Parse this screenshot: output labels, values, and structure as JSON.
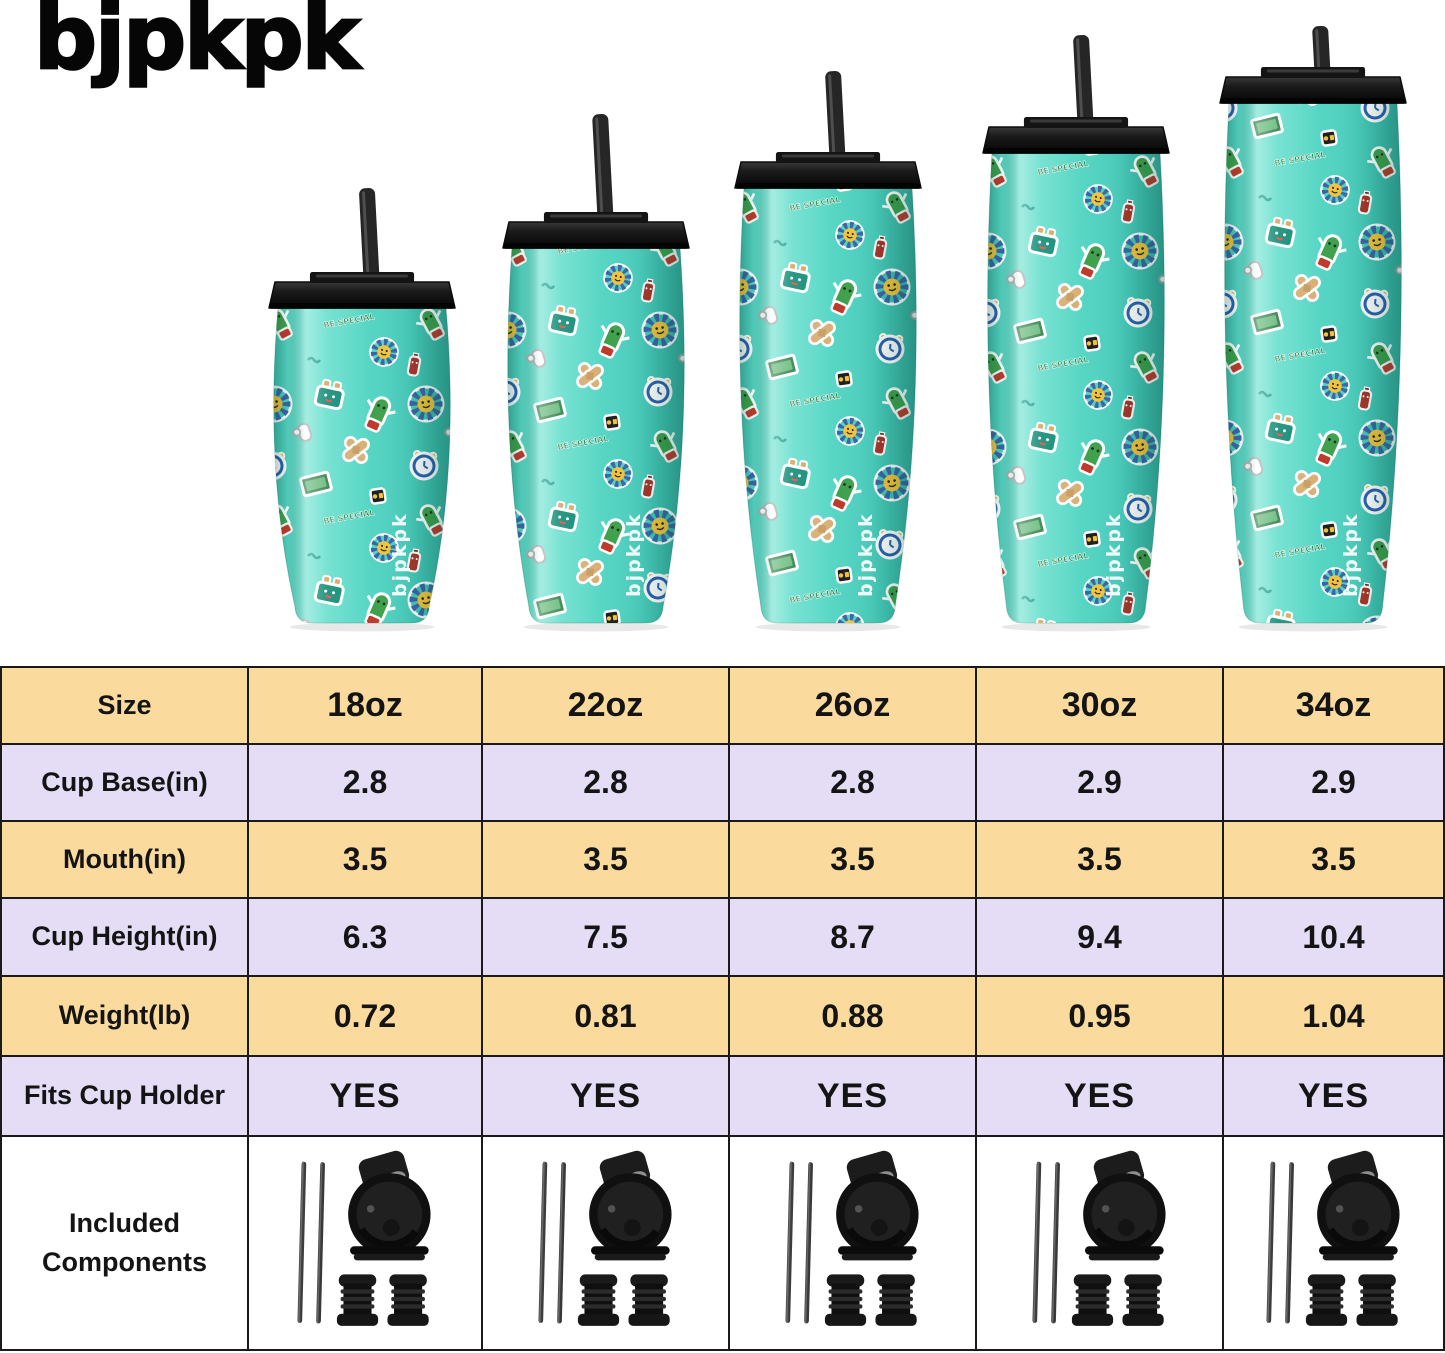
{
  "page": {
    "background": "#ffffff"
  },
  "brand": {
    "logo_text": "bjpkpk"
  },
  "colors": {
    "page_bg": "#ffffff",
    "mint": "#4ecfbf",
    "mint_light": "#8feadb",
    "mint_dark": "#2fa596",
    "lid_black": "#161616",
    "straw": "#262626",
    "table_peach": "#fbdb9d",
    "table_lavender": "#e4ddf5",
    "table_border": "#1a1a1a",
    "text_dark": "#141414",
    "watermark": "#ffffff"
  },
  "tumblers": {
    "watermark_text": "bjpkpk",
    "sizes": [
      "18oz",
      "22oz",
      "26oz",
      "30oz",
      "34oz"
    ],
    "sticker_motifs": [
      "flower-face",
      "pickle",
      "toaster",
      "alarm-clock",
      "band-aid",
      "glove",
      "money-card",
      "ketchup-bottle",
      "ok-badge",
      "be-special-text"
    ]
  },
  "included_components_icons": [
    "straws-icon",
    "flip-lid-icon",
    "straw-stoppers-icon"
  ],
  "table": {
    "rows": [
      {
        "label": "Size",
        "values": [
          "18oz",
          "22oz",
          "26oz",
          "30oz",
          "34oz"
        ]
      },
      {
        "label": "Cup Base(in)",
        "values": [
          "2.8",
          "2.8",
          "2.8",
          "2.9",
          "2.9"
        ]
      },
      {
        "label": "Mouth(in)",
        "values": [
          "3.5",
          "3.5",
          "3.5",
          "3.5",
          "3.5"
        ]
      },
      {
        "label": "Cup Height(in)",
        "values": [
          "6.3",
          "7.5",
          "8.7",
          "9.4",
          "10.4"
        ]
      },
      {
        "label": "Weight(lb)",
        "values": [
          "0.72",
          "0.81",
          "0.88",
          "0.95",
          "1.04"
        ]
      },
      {
        "label": "Fits Cup Holder",
        "values": [
          "YES",
          "YES",
          "YES",
          "YES",
          "YES"
        ]
      },
      {
        "label": "Included Components",
        "label_line1": "Included",
        "label_line2": "Components",
        "values": [
          "",
          "",
          "",
          "",
          ""
        ]
      }
    ]
  },
  "chart_data": {
    "type": "table",
    "title": "bjpkpk tumbler size comparison chart",
    "columns": [
      "Size",
      "18oz",
      "22oz",
      "26oz",
      "30oz",
      "34oz"
    ],
    "rows": [
      [
        "Cup Base(in)",
        2.8,
        2.8,
        2.8,
        2.9,
        2.9
      ],
      [
        "Mouth(in)",
        3.5,
        3.5,
        3.5,
        3.5,
        3.5
      ],
      [
        "Cup Height(in)",
        6.3,
        7.5,
        8.7,
        9.4,
        10.4
      ],
      [
        "Weight(lb)",
        0.72,
        0.81,
        0.88,
        0.95,
        1.04
      ],
      [
        "Fits Cup Holder",
        "YES",
        "YES",
        "YES",
        "YES",
        "YES"
      ]
    ],
    "included_components_pictured": "two straws, one flip lid, two straw stoppers shown for every size"
  }
}
